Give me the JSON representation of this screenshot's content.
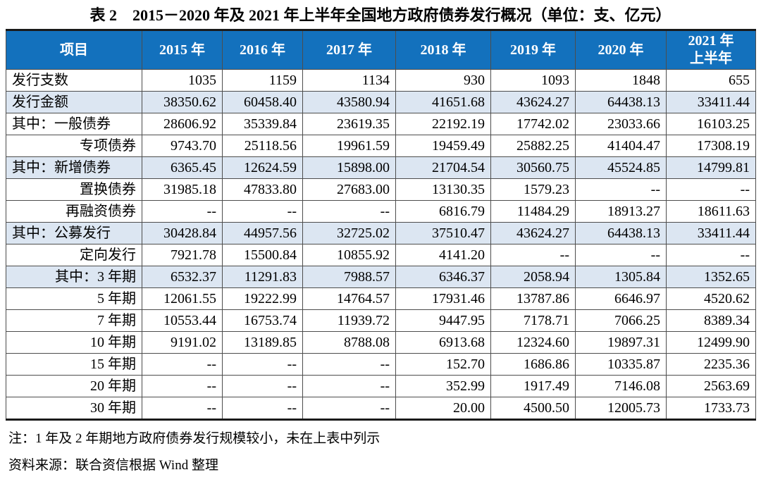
{
  "title": "表 2　2015－2020 年及 2021 年上半年全国地方政府债券发行概况（单位：支、亿元）",
  "colors": {
    "header_bg": "#1371BD",
    "header_text": "#FFFFFF",
    "zebra_row_bg": "#DCE6F2",
    "grid_line": "#4D4D4D",
    "outer_border": "#1A1A1A"
  },
  "table": {
    "columns": [
      "项目",
      "2015 年",
      "2016 年",
      "2017 年",
      "2018 年",
      "2019 年",
      "2020 年",
      "2021 年\n上半年"
    ],
    "rows": [
      {
        "label": "发行支数",
        "align": "left",
        "zebra": false,
        "values": [
          "1035",
          "1159",
          "1134",
          "930",
          "1093",
          "1848",
          "655"
        ]
      },
      {
        "label": "发行金额",
        "align": "left",
        "zebra": true,
        "values": [
          "38350.62",
          "60458.40",
          "43580.94",
          "41651.68",
          "43624.27",
          "64438.13",
          "33411.44"
        ]
      },
      {
        "label": "其中：一般债券",
        "align": "left",
        "zebra": false,
        "values": [
          "28606.92",
          "35339.84",
          "23619.35",
          "22192.19",
          "17742.02",
          "23033.66",
          "16103.25"
        ]
      },
      {
        "label": "专项债券",
        "align": "right",
        "zebra": false,
        "values": [
          "9743.70",
          "25118.56",
          "19961.59",
          "19459.49",
          "25882.25",
          "41404.47",
          "17308.19"
        ]
      },
      {
        "label": "其中：新增债券",
        "align": "left",
        "zebra": true,
        "values": [
          "6365.45",
          "12624.59",
          "15898.00",
          "21704.54",
          "30560.75",
          "45524.85",
          "14799.81"
        ]
      },
      {
        "label": "置换债券",
        "align": "right",
        "zebra": false,
        "values": [
          "31985.18",
          "47833.80",
          "27683.00",
          "13130.35",
          "1579.23",
          "--",
          "--"
        ]
      },
      {
        "label": "再融资债券",
        "align": "right",
        "zebra": false,
        "values": [
          "--",
          "--",
          "--",
          "6816.79",
          "11484.29",
          "18913.27",
          "18611.63"
        ]
      },
      {
        "label": "其中：公募发行",
        "align": "left",
        "zebra": true,
        "values": [
          "30428.84",
          "44957.56",
          "32725.02",
          "37510.47",
          "43624.27",
          "64438.13",
          "33411.44"
        ]
      },
      {
        "label": "定向发行",
        "align": "right",
        "zebra": false,
        "values": [
          "7921.78",
          "15500.84",
          "10855.92",
          "4141.20",
          "--",
          "--",
          "--"
        ]
      },
      {
        "label": "其中：3 年期",
        "align": "right",
        "zebra": true,
        "values": [
          "6532.37",
          "11291.83",
          "7988.57",
          "6346.37",
          "2058.94",
          "1305.84",
          "1352.65"
        ]
      },
      {
        "label": "5 年期",
        "align": "right",
        "zebra": false,
        "values": [
          "12061.55",
          "19222.99",
          "14764.57",
          "17931.46",
          "13787.86",
          "6646.97",
          "4520.62"
        ]
      },
      {
        "label": "7 年期",
        "align": "right",
        "zebra": false,
        "values": [
          "10553.44",
          "16753.74",
          "11939.72",
          "9447.95",
          "7178.71",
          "7066.25",
          "8389.34"
        ]
      },
      {
        "label": "10 年期",
        "align": "right",
        "zebra": false,
        "values": [
          "9191.02",
          "13189.85",
          "8788.08",
          "6913.68",
          "12324.60",
          "19897.31",
          "12499.90"
        ]
      },
      {
        "label": "15 年期",
        "align": "right",
        "zebra": false,
        "values": [
          "--",
          "--",
          "--",
          "152.70",
          "1686.86",
          "10335.87",
          "2235.36"
        ]
      },
      {
        "label": "20 年期",
        "align": "right",
        "zebra": false,
        "values": [
          "--",
          "--",
          "--",
          "352.99",
          "1917.49",
          "7146.08",
          "2563.69"
        ]
      },
      {
        "label": "30 年期",
        "align": "right",
        "zebra": false,
        "values": [
          "--",
          "--",
          "--",
          "20.00",
          "4500.50",
          "12005.73",
          "1733.73"
        ]
      }
    ]
  },
  "notes": {
    "note": "注：1 年及 2 年期地方政府债券发行规模较小，未在上表中列示",
    "source": "资料来源：联合资信根据 Wind 整理"
  }
}
